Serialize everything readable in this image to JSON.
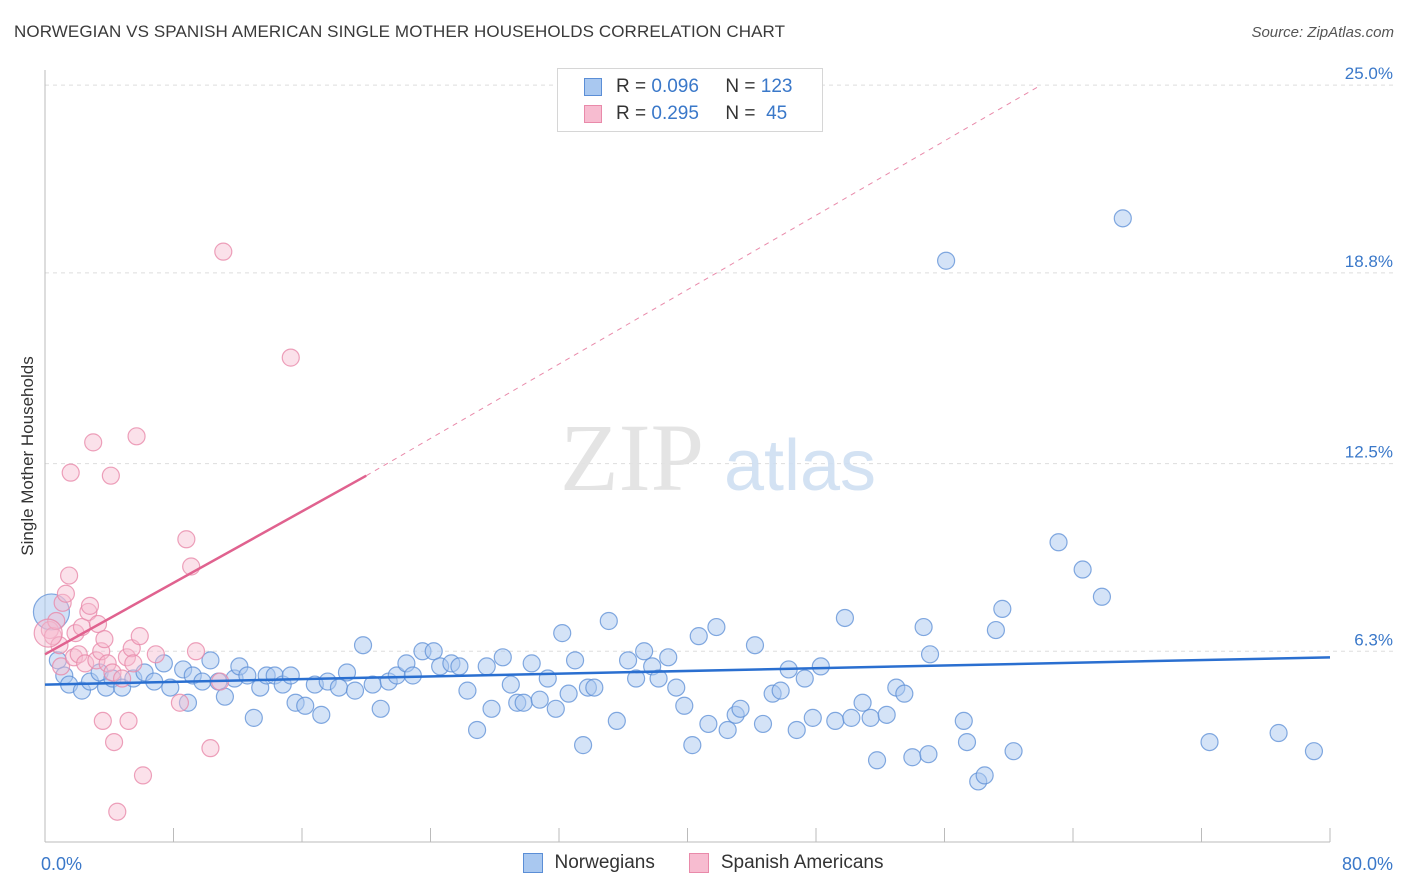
{
  "title": "NORWEGIAN VS SPANISH AMERICAN SINGLE MOTHER HOUSEHOLDS CORRELATION CHART",
  "source": "Source: ZipAtlas.com",
  "watermark": {
    "zip": "ZIP",
    "atlas": "atlas"
  },
  "legend": {
    "rows": [
      {
        "r_label": "R =",
        "r_value": "0.096",
        "n_label": "N =",
        "n_value": "123"
      },
      {
        "r_label": "R =",
        "r_value": "0.295",
        "n_label": "N =",
        "n_value": "45"
      }
    ]
  },
  "bottom_legend": [
    "Norwegians",
    "Spanish Americans"
  ],
  "colors": {
    "norwegians_fill": "#a9c8f0",
    "norwegians_stroke": "#5b8ed6",
    "norwegians_line": "#2a6fd0",
    "spanish_fill": "#f7bcd0",
    "spanish_stroke": "#e98aaa",
    "spanish_line": "#e0628f",
    "tick_label": "#3a78c9",
    "grid": "#dddddd"
  },
  "chart_data": {
    "type": "scatter",
    "title": "NORWEGIAN VS SPANISH AMERICAN SINGLE MOTHER HOUSEHOLDS CORRELATION CHART",
    "xlabel": "",
    "ylabel": "Single Mother Households",
    "xlim": [
      0,
      80
    ],
    "ylim": [
      0,
      25.5
    ],
    "x_tick_labels": [
      "0.0%",
      "80.0%"
    ],
    "y_ticks": [
      6.3,
      12.5,
      18.8,
      25.0
    ],
    "y_tick_labels": [
      "6.3%",
      "12.5%",
      "18.8%",
      "25.0%"
    ],
    "grid": "horizontal dashed",
    "legend_position": "top-center",
    "series": [
      {
        "name": "Norwegians",
        "r": 0.096,
        "n": 123,
        "trend": {
          "x": [
            0,
            80
          ],
          "y": [
            5.2,
            6.1
          ]
        },
        "points": [
          [
            0.8,
            6.0
          ],
          [
            1.2,
            5.5
          ],
          [
            1.5,
            5.2
          ],
          [
            2.3,
            5.0
          ],
          [
            2.8,
            5.3
          ],
          [
            3.4,
            5.6
          ],
          [
            3.8,
            5.1
          ],
          [
            4.2,
            5.4
          ],
          [
            4.8,
            5.1
          ],
          [
            5.5,
            5.4
          ],
          [
            6.2,
            5.6
          ],
          [
            6.8,
            5.3
          ],
          [
            7.4,
            5.9
          ],
          [
            7.8,
            5.1
          ],
          [
            8.6,
            5.7
          ],
          [
            9.2,
            5.5
          ],
          [
            8.9,
            4.6
          ],
          [
            9.8,
            5.3
          ],
          [
            10.3,
            6.0
          ],
          [
            10.8,
            5.3
          ],
          [
            11.2,
            4.8
          ],
          [
            11.8,
            5.4
          ],
          [
            12.1,
            5.8
          ],
          [
            12.6,
            5.5
          ],
          [
            13.0,
            4.1
          ],
          [
            13.4,
            5.1
          ],
          [
            13.8,
            5.5
          ],
          [
            14.3,
            5.5
          ],
          [
            14.8,
            5.2
          ],
          [
            15.3,
            5.5
          ],
          [
            15.6,
            4.6
          ],
          [
            16.2,
            4.5
          ],
          [
            16.8,
            5.2
          ],
          [
            17.2,
            4.2
          ],
          [
            17.6,
            5.3
          ],
          [
            18.3,
            5.1
          ],
          [
            18.8,
            5.6
          ],
          [
            19.3,
            5.0
          ],
          [
            19.8,
            6.5
          ],
          [
            20.4,
            5.2
          ],
          [
            20.9,
            4.4
          ],
          [
            21.4,
            5.3
          ],
          [
            21.9,
            5.5
          ],
          [
            22.5,
            5.9
          ],
          [
            22.9,
            5.5
          ],
          [
            23.5,
            6.3
          ],
          [
            24.2,
            6.3
          ],
          [
            24.6,
            5.8
          ],
          [
            25.3,
            5.9
          ],
          [
            25.8,
            5.8
          ],
          [
            26.3,
            5.0
          ],
          [
            26.9,
            3.7
          ],
          [
            27.5,
            5.8
          ],
          [
            27.8,
            4.4
          ],
          [
            28.5,
            6.1
          ],
          [
            29.0,
            5.2
          ],
          [
            29.4,
            4.6
          ],
          [
            29.8,
            4.6
          ],
          [
            30.3,
            5.9
          ],
          [
            30.8,
            4.7
          ],
          [
            31.3,
            5.4
          ],
          [
            31.8,
            4.4
          ],
          [
            32.2,
            6.9
          ],
          [
            32.6,
            4.9
          ],
          [
            33.0,
            6.0
          ],
          [
            33.5,
            3.2
          ],
          [
            33.8,
            5.1
          ],
          [
            34.2,
            5.1
          ],
          [
            35.1,
            7.3
          ],
          [
            35.6,
            4.0
          ],
          [
            36.3,
            6.0
          ],
          [
            36.8,
            5.4
          ],
          [
            37.3,
            6.3
          ],
          [
            37.8,
            5.8
          ],
          [
            38.2,
            5.4
          ],
          [
            38.8,
            6.1
          ],
          [
            39.3,
            5.1
          ],
          [
            39.8,
            4.5
          ],
          [
            40.3,
            3.2
          ],
          [
            40.7,
            6.8
          ],
          [
            41.3,
            3.9
          ],
          [
            41.8,
            7.1
          ],
          [
            42.5,
            3.7
          ],
          [
            43.0,
            4.2
          ],
          [
            43.3,
            4.4
          ],
          [
            44.2,
            6.5
          ],
          [
            44.7,
            3.9
          ],
          [
            45.3,
            4.9
          ],
          [
            45.8,
            5.0
          ],
          [
            46.3,
            5.7
          ],
          [
            46.8,
            3.7
          ],
          [
            47.3,
            5.4
          ],
          [
            47.8,
            4.1
          ],
          [
            48.3,
            5.8
          ],
          [
            49.2,
            4.0
          ],
          [
            49.8,
            7.4
          ],
          [
            50.2,
            4.1
          ],
          [
            50.9,
            4.6
          ],
          [
            51.4,
            4.1
          ],
          [
            51.8,
            2.7
          ],
          [
            52.4,
            4.2
          ],
          [
            53.0,
            5.1
          ],
          [
            53.5,
            4.9
          ],
          [
            54.0,
            2.8
          ],
          [
            55.0,
            2.9
          ],
          [
            54.7,
            7.1
          ],
          [
            55.1,
            6.2
          ],
          [
            56.1,
            19.2
          ],
          [
            57.2,
            4.0
          ],
          [
            57.4,
            3.3
          ],
          [
            58.1,
            2.0
          ],
          [
            58.5,
            2.2
          ],
          [
            59.2,
            7.0
          ],
          [
            59.6,
            7.7
          ],
          [
            60.3,
            3.0
          ],
          [
            63.1,
            9.9
          ],
          [
            64.6,
            9.0
          ],
          [
            65.8,
            8.1
          ],
          [
            67.1,
            20.6
          ],
          [
            72.5,
            3.3
          ],
          [
            76.8,
            3.6
          ],
          [
            79.0,
            3.0
          ],
          [
            0.4,
            7.6
          ]
        ]
      },
      {
        "name": "Spanish Americans",
        "r": 0.295,
        "n": 45,
        "trend": {
          "x": [
            0,
            20
          ],
          "y": [
            6.2,
            12.1
          ]
        },
        "trend_extension": {
          "x": [
            20,
            62
          ],
          "y": [
            12.1,
            25.0
          ]
        },
        "points": [
          [
            0.3,
            7.0
          ],
          [
            0.5,
            6.8
          ],
          [
            0.7,
            7.3
          ],
          [
            0.9,
            6.5
          ],
          [
            1.0,
            5.8
          ],
          [
            1.1,
            7.9
          ],
          [
            1.3,
            8.2
          ],
          [
            1.5,
            8.8
          ],
          [
            1.6,
            12.2
          ],
          [
            1.8,
            6.1
          ],
          [
            1.9,
            6.9
          ],
          [
            2.1,
            6.2
          ],
          [
            2.3,
            7.1
          ],
          [
            2.5,
            5.9
          ],
          [
            2.7,
            7.6
          ],
          [
            2.8,
            7.8
          ],
          [
            3.0,
            13.2
          ],
          [
            3.2,
            6.0
          ],
          [
            3.3,
            7.2
          ],
          [
            3.5,
            6.3
          ],
          [
            3.6,
            4.0
          ],
          [
            3.7,
            6.7
          ],
          [
            3.9,
            5.9
          ],
          [
            4.1,
            12.1
          ],
          [
            4.2,
            5.6
          ],
          [
            4.3,
            3.3
          ],
          [
            4.5,
            1.0
          ],
          [
            4.8,
            5.4
          ],
          [
            5.1,
            6.1
          ],
          [
            5.2,
            4.0
          ],
          [
            5.4,
            6.4
          ],
          [
            5.5,
            5.9
          ],
          [
            5.7,
            13.4
          ],
          [
            5.9,
            6.8
          ],
          [
            6.1,
            2.2
          ],
          [
            6.9,
            6.2
          ],
          [
            8.4,
            4.6
          ],
          [
            8.8,
            10.0
          ],
          [
            9.1,
            9.1
          ],
          [
            9.4,
            6.3
          ],
          [
            10.3,
            3.1
          ],
          [
            10.9,
            5.3
          ],
          [
            11.1,
            19.5
          ],
          [
            15.3,
            16.0
          ],
          [
            0.2,
            6.9
          ]
        ]
      }
    ]
  }
}
